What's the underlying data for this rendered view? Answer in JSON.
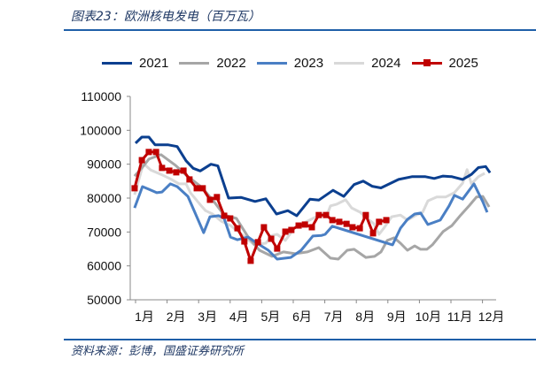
{
  "header": {
    "title": "图表23：欧洲核电发电（百万瓦）"
  },
  "footer": {
    "source": "资料来源：彭博，国盛证券研究所"
  },
  "chart_data": {
    "type": "line",
    "title": "欧洲核电发电（百万瓦）",
    "xlabel": "",
    "ylabel": "",
    "ylim": [
      50000,
      110000
    ],
    "yticks": [
      "50000",
      "60000",
      "70000",
      "80000",
      "90000",
      "100000",
      "110000"
    ],
    "xticks": [
      "1月",
      "2月",
      "3月",
      "4月",
      "5月",
      "6月",
      "7月",
      "8月",
      "9月",
      "10月",
      "11月",
      "12月"
    ],
    "x_unit": "month",
    "legend_position": "top",
    "series": [
      {
        "name": "2021",
        "color": "#0b3f8f",
        "marker": false,
        "points": [
          [
            1,
            96200
          ],
          [
            1.2,
            98000
          ],
          [
            1.42,
            98000
          ],
          [
            1.62,
            95700
          ],
          [
            2.04,
            95700
          ],
          [
            2.32,
            95200
          ],
          [
            2.6,
            91000
          ],
          [
            2.83,
            88800
          ],
          [
            3.05,
            88000
          ],
          [
            3.39,
            90000
          ],
          [
            3.61,
            89500
          ],
          [
            3.95,
            80000
          ],
          [
            4.34,
            80200
          ],
          [
            4.79,
            79000
          ],
          [
            5.13,
            79800
          ],
          [
            5.47,
            75300
          ],
          [
            5.83,
            76300
          ],
          [
            6.11,
            74800
          ],
          [
            6.53,
            79700
          ],
          [
            6.81,
            79400
          ],
          [
            7.26,
            82300
          ],
          [
            7.6,
            80500
          ],
          [
            7.93,
            84000
          ],
          [
            8.22,
            85000
          ],
          [
            8.5,
            83500
          ],
          [
            8.78,
            83000
          ],
          [
            9.34,
            85500
          ],
          [
            9.76,
            86300
          ],
          [
            10.19,
            86300
          ],
          [
            10.47,
            85800
          ],
          [
            10.75,
            86500
          ],
          [
            11.03,
            86300
          ],
          [
            11.37,
            85500
          ],
          [
            11.65,
            87000
          ],
          [
            11.87,
            89000
          ],
          [
            12.1,
            89300
          ],
          [
            12.24,
            87500
          ]
        ]
      },
      {
        "name": "2022",
        "color": "#a6a6a6",
        "marker": false,
        "points": [
          [
            0.97,
            86500
          ],
          [
            1.2,
            88900
          ],
          [
            1.42,
            91500
          ],
          [
            1.81,
            92800
          ],
          [
            2.26,
            89700
          ],
          [
            2.6,
            86800
          ],
          [
            3.11,
            83100
          ],
          [
            3.53,
            78400
          ],
          [
            3.81,
            75000
          ],
          [
            4.2,
            74000
          ],
          [
            4.57,
            68500
          ],
          [
            4.93,
            64600
          ],
          [
            5.33,
            62800
          ],
          [
            5.69,
            64100
          ],
          [
            6.06,
            63600
          ],
          [
            6.45,
            64100
          ],
          [
            6.81,
            65400
          ],
          [
            7.18,
            62300
          ],
          [
            7.43,
            62000
          ],
          [
            7.71,
            64600
          ],
          [
            7.93,
            64900
          ],
          [
            8.3,
            62500
          ],
          [
            8.58,
            62800
          ],
          [
            8.78,
            64100
          ],
          [
            8.98,
            67500
          ],
          [
            9.2,
            68300
          ],
          [
            9.4,
            66700
          ],
          [
            9.62,
            64600
          ],
          [
            9.85,
            65900
          ],
          [
            10.04,
            64900
          ],
          [
            10.24,
            64900
          ],
          [
            10.41,
            66200
          ],
          [
            10.75,
            70100
          ],
          [
            11.03,
            71900
          ],
          [
            11.31,
            75000
          ],
          [
            11.59,
            77900
          ],
          [
            11.81,
            80300
          ],
          [
            12.01,
            80500
          ],
          [
            12.21,
            77400
          ]
        ]
      },
      {
        "name": "2023",
        "color": "#4a7fc4",
        "marker": false,
        "points": [
          [
            0.97,
            77100
          ],
          [
            1.22,
            83400
          ],
          [
            1.42,
            82600
          ],
          [
            1.67,
            81600
          ],
          [
            1.84,
            81800
          ],
          [
            2.1,
            84200
          ],
          [
            2.32,
            83400
          ],
          [
            2.66,
            80500
          ],
          [
            2.94,
            74500
          ],
          [
            3.16,
            69800
          ],
          [
            3.36,
            74500
          ],
          [
            3.64,
            74800
          ],
          [
            3.81,
            74000
          ],
          [
            4.01,
            68500
          ],
          [
            4.23,
            67700
          ],
          [
            4.57,
            68500
          ],
          [
            4.85,
            66700
          ],
          [
            5.21,
            64600
          ],
          [
            5.49,
            62000
          ],
          [
            5.92,
            62500
          ],
          [
            6.25,
            64600
          ],
          [
            6.62,
            68800
          ],
          [
            6.9,
            69000
          ],
          [
            7.01,
            69300
          ],
          [
            7.24,
            71700
          ],
          [
            9.15,
            66200
          ],
          [
            9.4,
            71100
          ],
          [
            9.62,
            73700
          ],
          [
            9.85,
            75300
          ],
          [
            10.04,
            75600
          ],
          [
            10.27,
            72200
          ],
          [
            10.66,
            73500
          ],
          [
            10.94,
            77700
          ],
          [
            11.11,
            80800
          ],
          [
            11.37,
            79700
          ],
          [
            11.73,
            84200
          ],
          [
            12.01,
            78900
          ],
          [
            12.15,
            75800
          ]
        ]
      },
      {
        "name": "2024",
        "color": "#d9d9d9",
        "marker": false,
        "points": [
          [
            0.97,
            81000
          ],
          [
            1.25,
            90200
          ],
          [
            1.48,
            88300
          ],
          [
            1.81,
            87000
          ],
          [
            2.1,
            85700
          ],
          [
            2.38,
            84200
          ],
          [
            2.6,
            84200
          ],
          [
            2.74,
            81600
          ],
          [
            3.02,
            78400
          ],
          [
            3.22,
            76300
          ],
          [
            3.44,
            75300
          ],
          [
            3.72,
            73200
          ],
          [
            4.01,
            71900
          ],
          [
            4.37,
            69300
          ],
          [
            4.76,
            66200
          ],
          [
            5.13,
            66700
          ],
          [
            5.33,
            69000
          ],
          [
            5.49,
            69300
          ],
          [
            5.75,
            67500
          ],
          [
            6.03,
            71100
          ],
          [
            6.45,
            73200
          ],
          [
            6.73,
            74500
          ],
          [
            7.1,
            75800
          ],
          [
            7.18,
            77700
          ],
          [
            7.38,
            78200
          ],
          [
            7.66,
            79500
          ],
          [
            7.85,
            77100
          ],
          [
            8.13,
            75800
          ],
          [
            8.3,
            74300
          ],
          [
            8.56,
            72400
          ],
          [
            8.72,
            69300
          ],
          [
            8.87,
            71100
          ],
          [
            9.12,
            74500
          ],
          [
            9.4,
            75000
          ],
          [
            9.62,
            73500
          ],
          [
            9.9,
            75000
          ],
          [
            10.1,
            75800
          ],
          [
            10.27,
            79200
          ],
          [
            10.55,
            80300
          ],
          [
            10.83,
            80300
          ],
          [
            11.11,
            81600
          ],
          [
            11.37,
            84400
          ],
          [
            11.51,
            88400
          ],
          [
            11.65,
            84200
          ],
          [
            11.87,
            86300
          ],
          [
            12.07,
            87300
          ]
        ]
      },
      {
        "name": "2025",
        "color": "#c00000",
        "marker": true,
        "points": [
          [
            0.97,
            82900
          ],
          [
            1.2,
            91200
          ],
          [
            1.42,
            93600
          ],
          [
            1.65,
            93600
          ],
          [
            1.84,
            88900
          ],
          [
            2.07,
            88100
          ],
          [
            2.29,
            87600
          ],
          [
            2.52,
            88100
          ],
          [
            2.71,
            85500
          ],
          [
            2.94,
            82900
          ],
          [
            3.13,
            82900
          ],
          [
            3.36,
            79500
          ],
          [
            3.58,
            80300
          ],
          [
            3.81,
            74800
          ],
          [
            4.0,
            74000
          ],
          [
            4.23,
            71100
          ],
          [
            4.45,
            67200
          ],
          [
            4.65,
            61500
          ],
          [
            4.88,
            67000
          ],
          [
            5.07,
            71400
          ],
          [
            5.3,
            68000
          ],
          [
            5.49,
            65100
          ],
          [
            5.75,
            70100
          ],
          [
            5.94,
            70600
          ],
          [
            6.17,
            71900
          ],
          [
            6.37,
            72200
          ],
          [
            6.59,
            71400
          ],
          [
            6.81,
            75000
          ],
          [
            7.04,
            75000
          ],
          [
            7.24,
            73500
          ],
          [
            7.46,
            73000
          ],
          [
            7.69,
            72400
          ],
          [
            7.88,
            71400
          ],
          [
            8.11,
            71100
          ],
          [
            8.3,
            75000
          ],
          [
            8.53,
            69600
          ],
          [
            8.72,
            73000
          ],
          [
            8.95,
            73500
          ]
        ]
      }
    ]
  }
}
